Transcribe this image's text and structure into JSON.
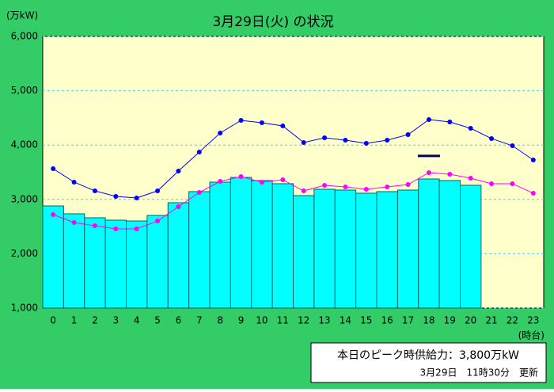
{
  "chart_data": {
    "type": "bar",
    "title": "3月29日(火) の状況",
    "y_axis_label": "(万kW)",
    "x_axis_label": "(時台)",
    "categories": [
      "0",
      "1",
      "2",
      "3",
      "4",
      "5",
      "6",
      "7",
      "8",
      "9",
      "10",
      "11",
      "12",
      "13",
      "14",
      "15",
      "16",
      "17",
      "18",
      "19",
      "20",
      "21",
      "22",
      "23"
    ],
    "values": [
      2880,
      2735,
      2662,
      2618,
      2603,
      2705,
      2939,
      3143,
      3318,
      3405,
      3347,
      3289,
      3070,
      3187,
      3172,
      3114,
      3143,
      3172,
      3376,
      3347,
      3260,
      null,
      null,
      null
    ],
    "color": "#00ffff",
    "lines": [
      {
        "color": "#0000ff",
        "values": [
          3566,
          3318,
          3157,
          3055,
          3026,
          3157,
          3522,
          3872,
          4222,
          4455,
          4411,
          4353,
          4047,
          4134,
          4090,
          4032,
          4090,
          4192,
          4469,
          4426,
          4309,
          4120,
          3988,
          3726
        ]
      },
      {
        "color": "#ff00ff",
        "values": [
          2720,
          2574,
          2516,
          2458,
          2458,
          2603,
          2866,
          3128,
          3332,
          3420,
          3318,
          3362,
          3157,
          3260,
          3230,
          3187,
          3230,
          3274,
          3493,
          3464,
          3391,
          3289,
          3289,
          3114
        ]
      }
    ],
    "peak_supply": {
      "color": "#000066",
      "values": [
        null,
        null,
        null,
        null,
        null,
        null,
        null,
        null,
        null,
        null,
        null,
        null,
        null,
        null,
        null,
        null,
        null,
        null,
        3800,
        null,
        null,
        null,
        null,
        null
      ]
    },
    "ylim": [
      1000,
      6000
    ],
    "yticks": [
      {
        "value": 1000,
        "label": "1,000"
      },
      {
        "value": 2000,
        "label": "2,000"
      },
      {
        "value": 3000,
        "label": "3,000"
      },
      {
        "value": 4000,
        "label": "4,000"
      },
      {
        "value": 5000,
        "label": "5,000"
      },
      {
        "value": 6000,
        "label": "6,000"
      }
    ],
    "grid": true,
    "info": {
      "peak_text": "本日のピーク時供給力：3,800万kW",
      "updated": "3月29日　11時30分　更新"
    }
  }
}
